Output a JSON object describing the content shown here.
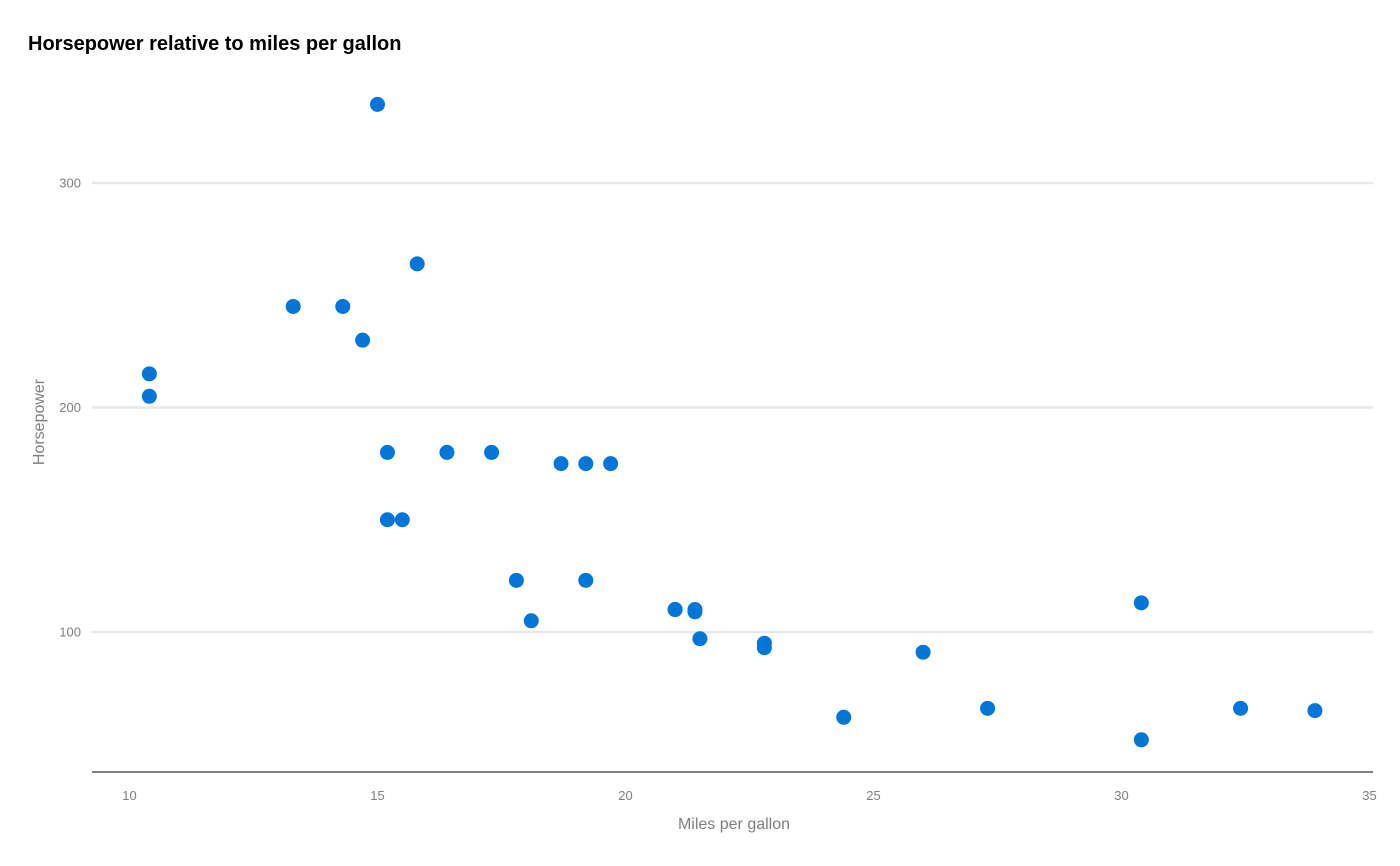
{
  "chart_data": {
    "type": "scatter",
    "title": "Horsepower relative to miles per gallon",
    "xlabel": "Miles per gallon",
    "ylabel": "Horsepower",
    "xlim": [
      9.25,
      35
    ],
    "ylim": [
      38,
      340
    ],
    "x_ticks": [
      "10",
      "15",
      "20",
      "25",
      "30",
      "35"
    ],
    "y_ticks": [
      "100",
      "200",
      "300"
    ],
    "grid": "horizontal",
    "legend": "none",
    "point_color": "#0275d8",
    "gridline_color": "#e8e8e8",
    "axis_color": "#808080",
    "series": [
      {
        "points": [
          {
            "x": 21.0,
            "y": 110
          },
          {
            "x": 21.0,
            "y": 110
          },
          {
            "x": 22.8,
            "y": 93
          },
          {
            "x": 21.4,
            "y": 110
          },
          {
            "x": 18.7,
            "y": 175
          },
          {
            "x": 18.1,
            "y": 105
          },
          {
            "x": 14.3,
            "y": 245
          },
          {
            "x": 24.4,
            "y": 62
          },
          {
            "x": 22.8,
            "y": 95
          },
          {
            "x": 19.2,
            "y": 123
          },
          {
            "x": 17.8,
            "y": 123
          },
          {
            "x": 16.4,
            "y": 180
          },
          {
            "x": 17.3,
            "y": 180
          },
          {
            "x": 15.2,
            "y": 180
          },
          {
            "x": 10.4,
            "y": 205
          },
          {
            "x": 10.4,
            "y": 215
          },
          {
            "x": 14.7,
            "y": 230
          },
          {
            "x": 32.4,
            "y": 66
          },
          {
            "x": 30.4,
            "y": 52
          },
          {
            "x": 33.9,
            "y": 65
          },
          {
            "x": 21.5,
            "y": 97
          },
          {
            "x": 15.5,
            "y": 150
          },
          {
            "x": 15.2,
            "y": 150
          },
          {
            "x": 13.3,
            "y": 245
          },
          {
            "x": 19.2,
            "y": 175
          },
          {
            "x": 27.3,
            "y": 66
          },
          {
            "x": 26.0,
            "y": 91
          },
          {
            "x": 30.4,
            "y": 113
          },
          {
            "x": 15.8,
            "y": 264
          },
          {
            "x": 19.7,
            "y": 175
          },
          {
            "x": 15.0,
            "y": 335
          },
          {
            "x": 21.4,
            "y": 109
          }
        ]
      }
    ]
  }
}
